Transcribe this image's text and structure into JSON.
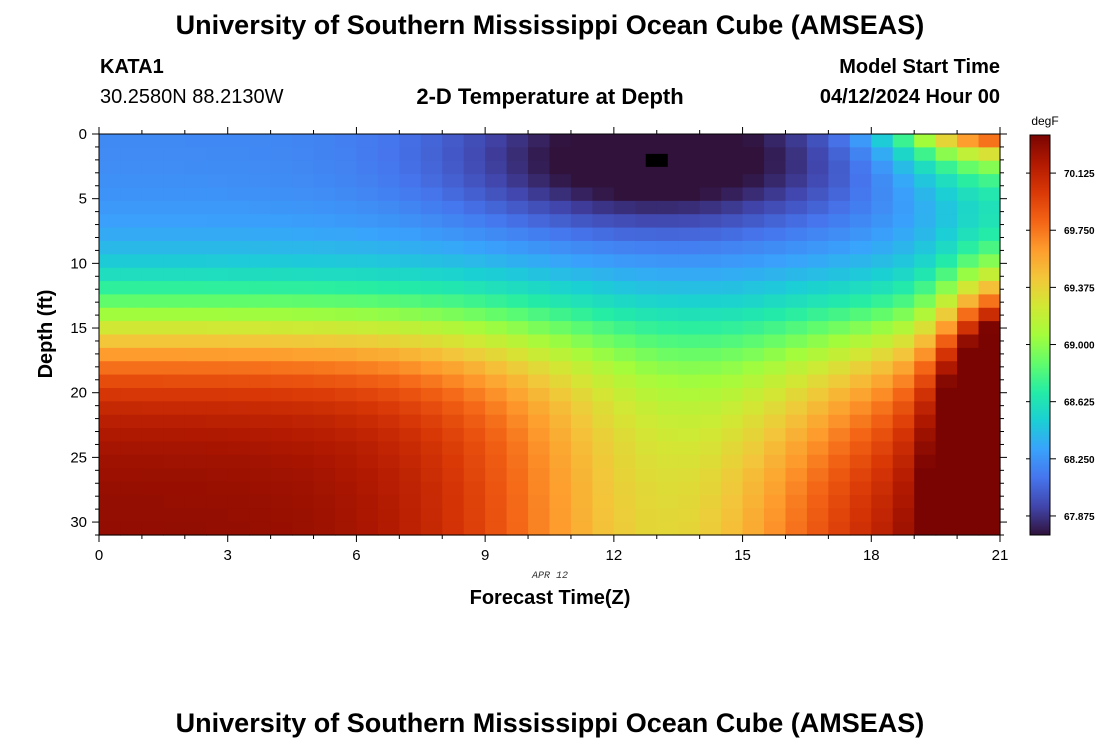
{
  "header": {
    "title": "University of Southern Mississippi Ocean Cube (AMSEAS)",
    "station_name": "KATA1",
    "station_coords": "30.2580N  88.2130W",
    "subtitle": "2-D Temperature at Depth",
    "model_start_label": "Model Start Time",
    "model_start_value": "04/12/2024 Hour 00"
  },
  "footer": {
    "title": "University of Southern Mississippi Ocean Cube (AMSEAS)"
  },
  "chart_data": {
    "type": "heatmap",
    "title": "2-D Temperature at Depth",
    "xlabel": "Forecast Time(Z)",
    "ylabel": "Depth (ft)",
    "date_label": "APR 12",
    "x_range": [
      0,
      21
    ],
    "y_range": [
      0,
      31
    ],
    "x_ticks": [
      0,
      3,
      6,
      9,
      12,
      15,
      18,
      21
    ],
    "y_ticks": [
      0,
      5,
      10,
      15,
      20,
      25,
      30
    ],
    "colorbar": {
      "unit": "degF",
      "range": [
        67.75,
        70.375
      ],
      "tick_values": [
        67.875,
        68.25,
        68.625,
        69.0,
        69.375,
        69.75,
        70.125
      ],
      "tick_labels": [
        "67.875",
        "68.250",
        "68.625",
        "69.000",
        "69.375",
        "69.750",
        "70.125"
      ],
      "colors": [
        "#30123b",
        "#4145ab",
        "#4675ed",
        "#39a2fc",
        "#1bcfd4",
        "#24eca6",
        "#61fc6c",
        "#a4fc3b",
        "#d1e834",
        "#f3c63a",
        "#fe9b2d",
        "#f36315",
        "#d93806",
        "#b11901",
        "#7a0402"
      ]
    },
    "field_description": "Temperature (degF) vs forecast hour (0-21) and depth (0-31 ft); estimated from colors",
    "max_marker": {
      "hour": 13,
      "depth_ft": 2
    }
  }
}
